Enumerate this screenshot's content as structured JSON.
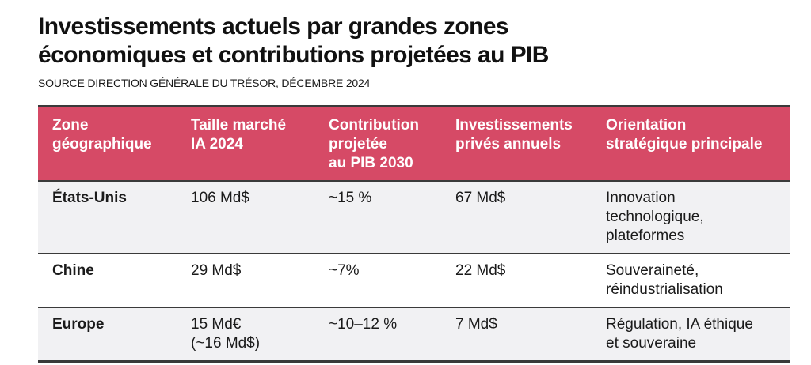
{
  "title": "Investissements actuels par grandes zones\néconomiques et contributions projetées au PIB",
  "source": "SOURCE DIRECTION GÉNÉRALE DU TRÉSOR, DÉCEMBRE 2024",
  "colors": {
    "header_bg": "#d64a66",
    "header_text": "#ffffff",
    "row_alt_bg": "#f1f1f3",
    "row_bg": "#ffffff",
    "divider": "#3a3a3a",
    "text": "#1a1a1a"
  },
  "table": {
    "headers": [
      "Zone\ngéographique",
      "Taille marché\nIA 2024",
      "Contribution\nprojetée\nau PIB 2030",
      "Investissements\nprivés annuels",
      "Orientation\nstratégique principale"
    ],
    "rows": [
      [
        "États-Unis",
        "106 Md$",
        "~15 %",
        "67 Md$",
        "Innovation\ntechnologique,\nplateformes"
      ],
      [
        "Chine",
        "29 Md$",
        "~7%",
        "22 Md$",
        "Souveraineté,\nréindustrialisation"
      ],
      [
        "Europe",
        "15 Md€\n(~16 Md$)",
        "~10–12 %",
        "7 Md$",
        "Régulation, IA éthique\net souveraine"
      ]
    ]
  },
  "chart_data": {
    "type": "table",
    "title": "Investissements actuels par grandes zones économiques et contributions projetées au PIB",
    "source": "SOURCE DIRECTION GÉNÉRALE DU TRÉSOR, DÉCEMBRE 2024",
    "columns": [
      "Zone géographique",
      "Taille marché IA 2024",
      "Contribution projetée au PIB 2030",
      "Investissements privés annuels",
      "Orientation stratégique principale"
    ],
    "rows": [
      {
        "zone": "États-Unis",
        "taille_marche_ia_2024": "106 Md$",
        "contribution_pib_2030": "~15 %",
        "investissements_prives_annuels": "67 Md$",
        "orientation_strategique": "Innovation technologique, plateformes"
      },
      {
        "zone": "Chine",
        "taille_marche_ia_2024": "29 Md$",
        "contribution_pib_2030": "~7%",
        "investissements_prives_annuels": "22 Md$",
        "orientation_strategique": "Souveraineté, réindustrialisation"
      },
      {
        "zone": "Europe",
        "taille_marche_ia_2024": "15 Md€ (~16 Md$)",
        "contribution_pib_2030": "~10–12 %",
        "investissements_prives_annuels": "7 Md$",
        "orientation_strategique": "Régulation, IA éthique et souveraine"
      }
    ]
  }
}
